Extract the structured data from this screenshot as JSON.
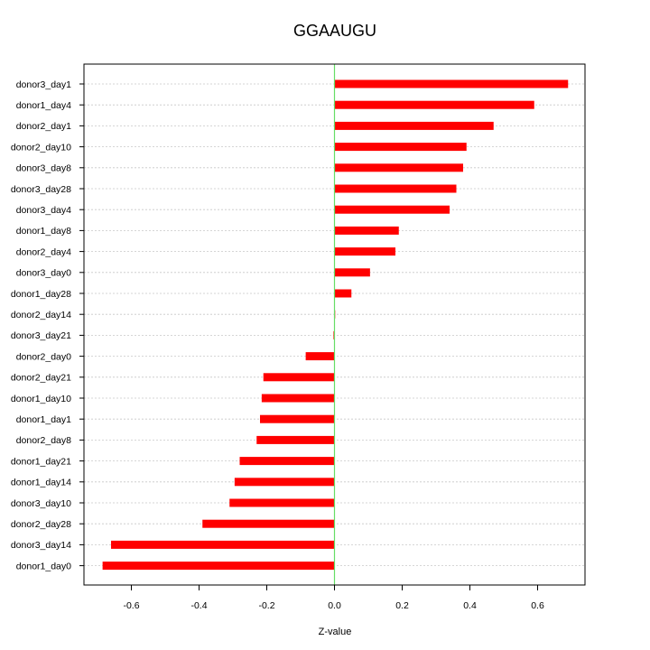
{
  "chart_data": {
    "type": "bar",
    "orientation": "horizontal",
    "title": "GGAAUGU",
    "xlabel": "Z-value",
    "ylabel": "",
    "xlim": [
      -0.74,
      0.74
    ],
    "xticks": [
      -0.6,
      -0.4,
      -0.2,
      0.0,
      0.2,
      0.4,
      0.6
    ],
    "xtick_labels": [
      "-0.6",
      "-0.4",
      "-0.2",
      "0.0",
      "0.2",
      "0.4",
      "0.6"
    ],
    "grid": "horizontal dotted",
    "reference_line_x": 0,
    "bar_color": "#ff0000",
    "reference_line_color": "#66dd66",
    "categories": [
      "donor3_day1",
      "donor1_day4",
      "donor2_day1",
      "donor2_day10",
      "donor3_day8",
      "donor3_day28",
      "donor3_day4",
      "donor1_day8",
      "donor2_day4",
      "donor3_day0",
      "donor1_day28",
      "donor2_day14",
      "donor3_day21",
      "donor2_day0",
      "donor2_day21",
      "donor1_day10",
      "donor1_day1",
      "donor2_day8",
      "donor1_day21",
      "donor1_day14",
      "donor3_day10",
      "donor2_day28",
      "donor3_day14",
      "donor1_day0"
    ],
    "values": [
      0.69,
      0.59,
      0.47,
      0.39,
      0.38,
      0.36,
      0.34,
      0.19,
      0.18,
      0.105,
      0.05,
      0.0,
      -0.003,
      -0.085,
      -0.21,
      -0.215,
      -0.22,
      -0.23,
      -0.28,
      -0.295,
      -0.31,
      -0.39,
      -0.66,
      -0.685
    ]
  }
}
